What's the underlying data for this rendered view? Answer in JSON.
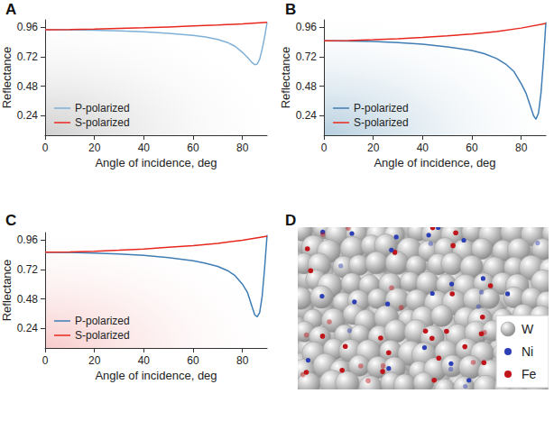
{
  "chart_data": [
    {
      "type": "line",
      "panel_label": "A",
      "x_label": "Angle of incidence, deg",
      "y_label": "Reflectance",
      "xlim": [
        0,
        90
      ],
      "xticks": [
        0,
        20,
        40,
        60,
        80
      ],
      "ylim": [
        0.08,
        1.02
      ],
      "yticks": [
        0.24,
        0.48,
        0.72,
        0.96
      ],
      "grid": false,
      "legend": "bottom-left",
      "series": [
        {
          "name": "P-polarized",
          "color": "#7fb0d8",
          "x": [
            0,
            10,
            20,
            30,
            40,
            50,
            60,
            65,
            70,
            74,
            77,
            80,
            82,
            84,
            85,
            86,
            87,
            88,
            89,
            90
          ],
          "values": [
            0.94,
            0.938,
            0.935,
            0.93,
            0.922,
            0.91,
            0.893,
            0.88,
            0.86,
            0.835,
            0.805,
            0.755,
            0.715,
            0.67,
            0.655,
            0.66,
            0.7,
            0.78,
            0.88,
            1.0
          ]
        },
        {
          "name": "S-polarized",
          "color": "#e8281e",
          "x": [
            0,
            10,
            20,
            30,
            40,
            50,
            60,
            70,
            80,
            90
          ],
          "values": [
            0.94,
            0.941,
            0.945,
            0.95,
            0.955,
            0.962,
            0.97,
            0.978,
            0.987,
            1.0
          ]
        }
      ]
    },
    {
      "type": "line",
      "panel_label": "B",
      "x_label": "Angle of incidence, deg",
      "y_label": "Reflectance",
      "xlim": [
        0,
        90
      ],
      "xticks": [
        0,
        20,
        40,
        60,
        80
      ],
      "ylim": [
        0.08,
        1.02
      ],
      "yticks": [
        0.24,
        0.48,
        0.72,
        0.96
      ],
      "grid": false,
      "legend": "bottom-left",
      "series": [
        {
          "name": "P-polarized",
          "color": "#3f7db5",
          "x": [
            0,
            10,
            20,
            30,
            40,
            50,
            60,
            65,
            70,
            74,
            77,
            80,
            82,
            84,
            85,
            86,
            87,
            88,
            89,
            90
          ],
          "values": [
            0.85,
            0.848,
            0.843,
            0.835,
            0.822,
            0.8,
            0.77,
            0.745,
            0.705,
            0.655,
            0.6,
            0.5,
            0.42,
            0.3,
            0.24,
            0.21,
            0.26,
            0.42,
            0.68,
            1.0
          ]
        },
        {
          "name": "S-polarized",
          "color": "#e8281e",
          "x": [
            0,
            10,
            20,
            30,
            40,
            50,
            60,
            70,
            80,
            90
          ],
          "values": [
            0.85,
            0.852,
            0.858,
            0.866,
            0.876,
            0.89,
            0.905,
            0.925,
            0.953,
            0.99
          ]
        }
      ]
    },
    {
      "type": "line",
      "panel_label": "C",
      "x_label": "Angle of incidence, deg",
      "y_label": "Reflectance",
      "xlim": [
        0,
        90
      ],
      "xticks": [
        0,
        20,
        40,
        60,
        80
      ],
      "ylim": [
        0.08,
        1.02
      ],
      "yticks": [
        0.24,
        0.48,
        0.72,
        0.96
      ],
      "grid": false,
      "legend": "bottom-left",
      "series": [
        {
          "name": "P-polarized",
          "color": "#3f7db5",
          "x": [
            0,
            10,
            20,
            30,
            40,
            50,
            60,
            65,
            70,
            74,
            77,
            80,
            82,
            84,
            85,
            86,
            87,
            88,
            89,
            90
          ],
          "values": [
            0.86,
            0.858,
            0.853,
            0.846,
            0.834,
            0.816,
            0.79,
            0.77,
            0.745,
            0.71,
            0.67,
            0.6,
            0.535,
            0.41,
            0.35,
            0.335,
            0.37,
            0.5,
            0.73,
            1.0
          ]
        },
        {
          "name": "S-polarized",
          "color": "#e8281e",
          "x": [
            0,
            10,
            20,
            30,
            40,
            50,
            60,
            70,
            80,
            90
          ],
          "values": [
            0.86,
            0.862,
            0.868,
            0.876,
            0.886,
            0.9,
            0.914,
            0.932,
            0.958,
            0.99
          ]
        }
      ]
    }
  ],
  "image": {
    "panel_label": "D",
    "legend": [
      {
        "name": "W",
        "color": "#c4c4c4"
      },
      {
        "name": "Ni",
        "color": "#2c3fb4"
      },
      {
        "name": "Fe",
        "color": "#c0151b"
      }
    ]
  }
}
